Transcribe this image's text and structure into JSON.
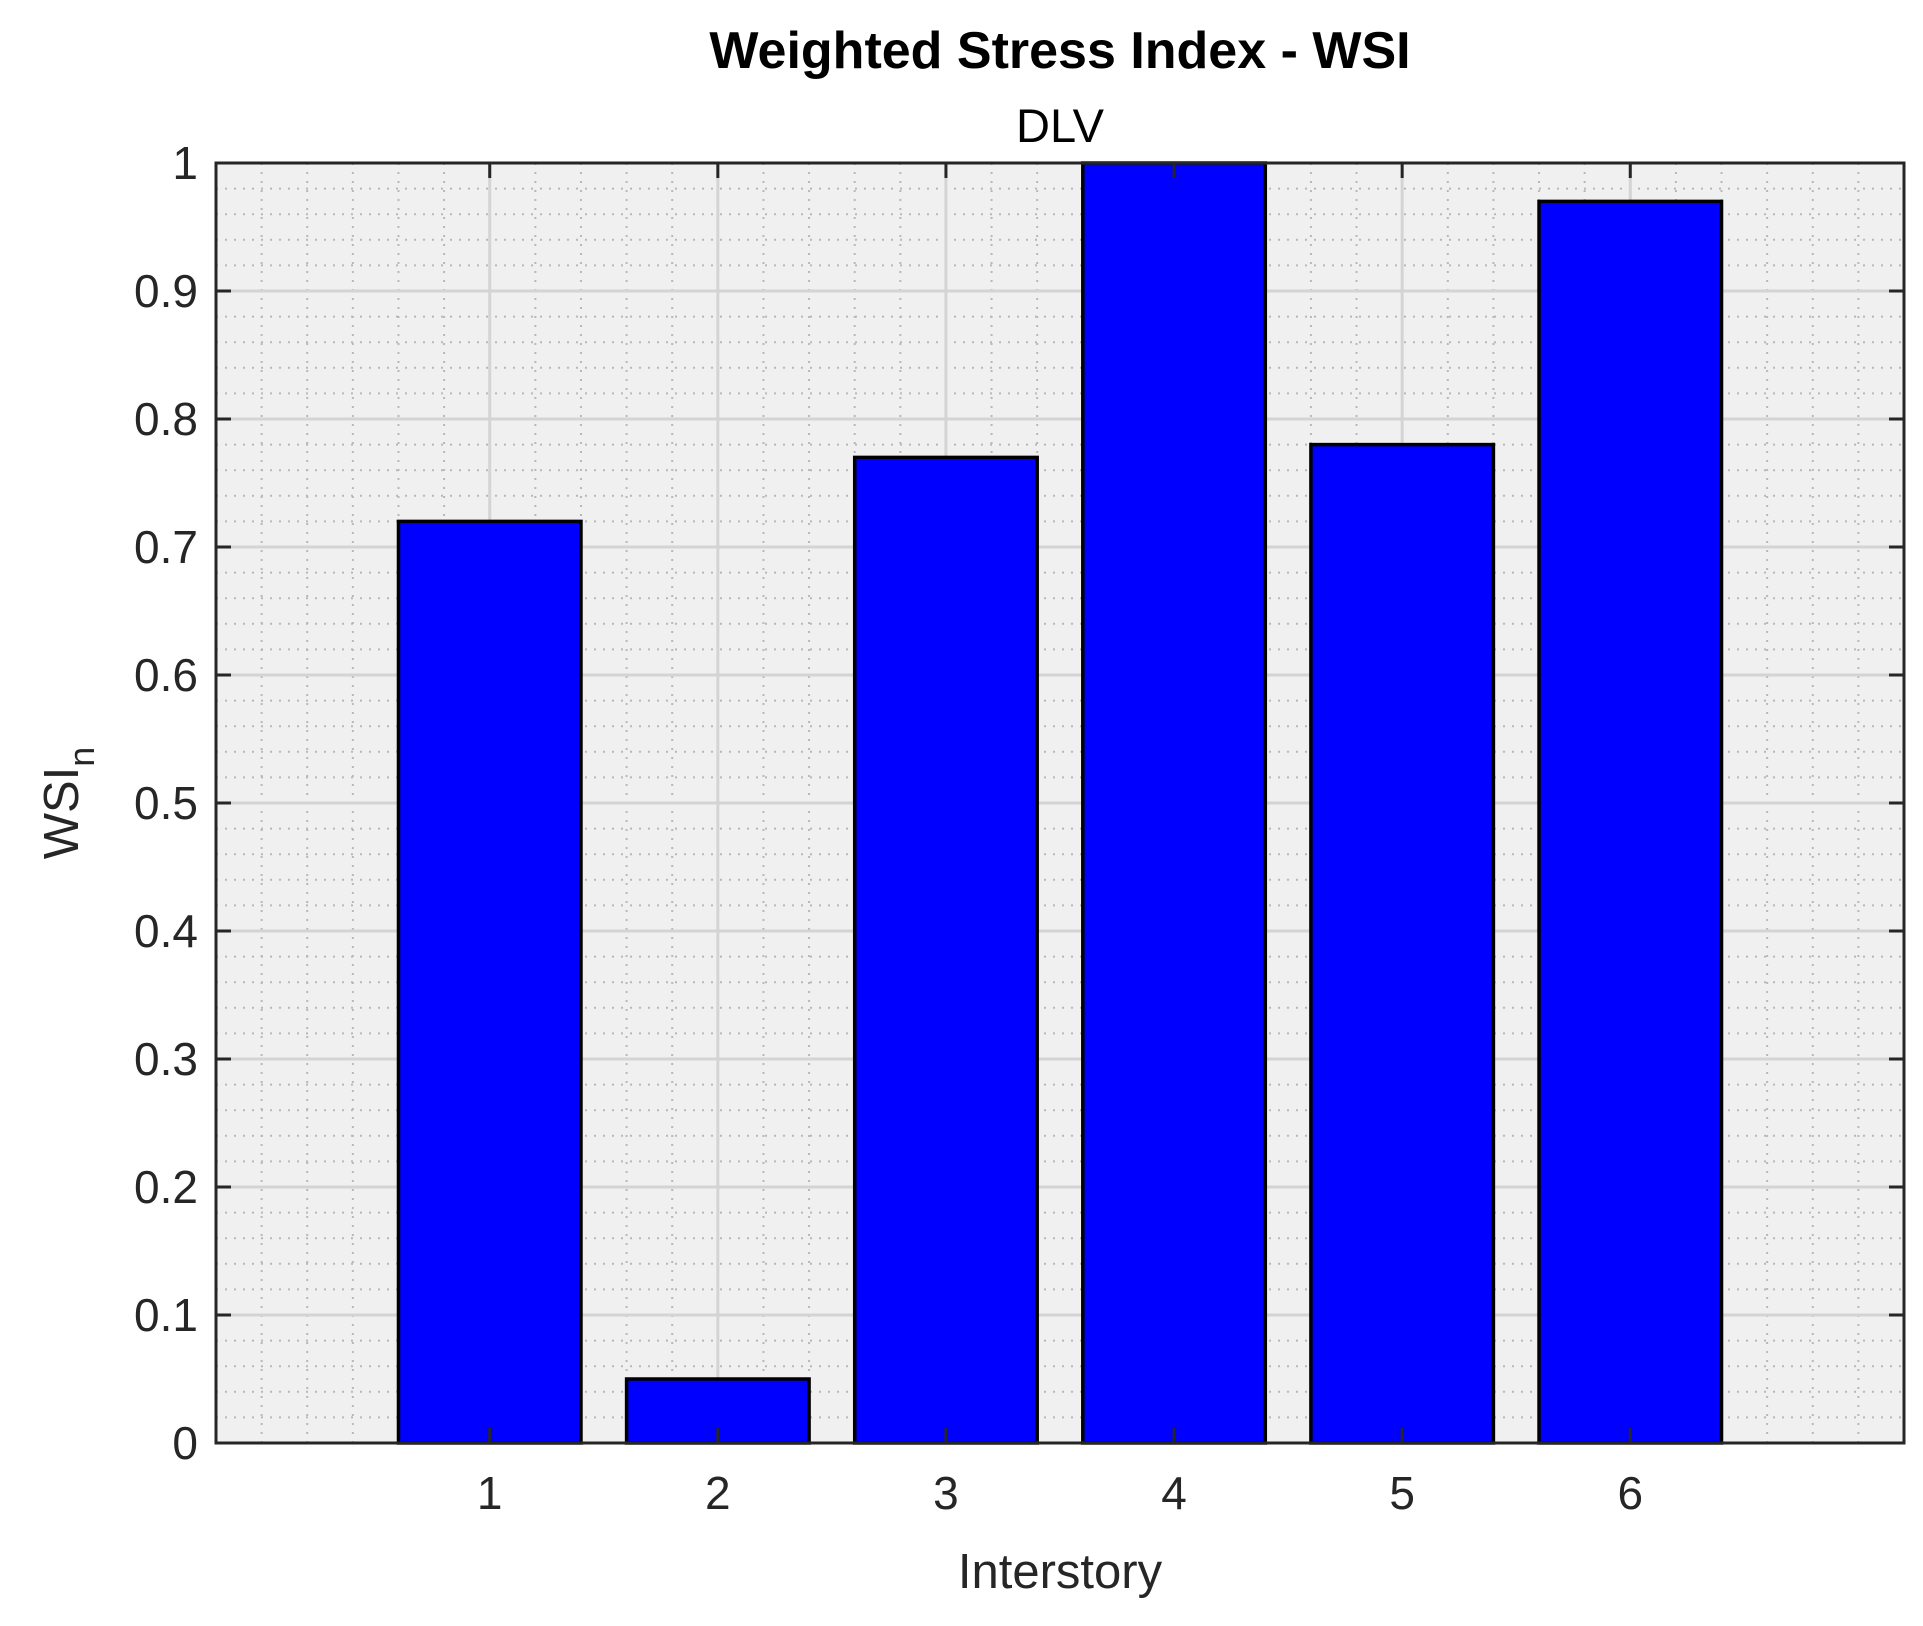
{
  "chart_data": {
    "type": "bar",
    "title": "Weighted Stress Index - WSI",
    "subtitle": "DLV",
    "xlabel": "Interstory",
    "ylabel": "WSI",
    "ylabel_subscript": "n",
    "categories": [
      "1",
      "2",
      "3",
      "4",
      "5",
      "6"
    ],
    "values": [
      0.72,
      0.05,
      0.77,
      1.0,
      0.78,
      0.97
    ],
    "xlim": [
      -0.2,
      7.2
    ],
    "ylim": [
      0,
      1
    ],
    "yticks": [
      "0",
      "0.1",
      "0.2",
      "0.3",
      "0.4",
      "0.5",
      "0.6",
      "0.7",
      "0.8",
      "0.9",
      "1"
    ],
    "grid": "major and minor",
    "colors": {
      "bar_fill": "#0000ff",
      "bar_edge": "#000000",
      "axes_bg": "#f0f0f0",
      "axes_line": "#262626"
    }
  }
}
